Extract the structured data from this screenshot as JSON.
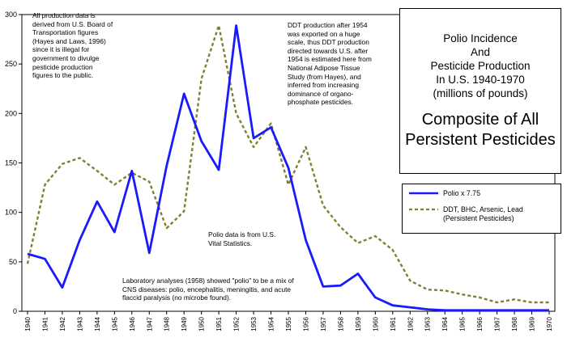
{
  "title": {
    "subtitle": "Polio Incidence\nAnd\nPesticide Production\nIn U.S. 1940-1970\n(millions of pounds)",
    "main": "Composite of All\nPersistent Pesticides"
  },
  "annotations": {
    "production_source": "All production data is\nderived from U.S. Board of\nTransportation figures\n(Hayes and Laws, 1996)\nsince it is illegal for\ngovernment to divulge\npesticide production\nfigures to the public.",
    "ddt_note": "DDT production after 1954\nwas exported on a huge\nscale, thus DDT production\ndirected towards U.S. after\n1954 is estimated here from\nNational Adipose Tissue\nStudy (from Hayes), and\ninferred from increasing\ndominance of organo-\nphosphate pesticides.",
    "polio_source": "Polio data is from U.S.\nVital Statistics.",
    "lab_note": "Laboratory analyses (1958) showed \"polio\" to be a mix of\nCNS diseases: polio, encephalitis, meningitis, and acute\nflaccid paralysis (no microbe found)."
  },
  "legend": {
    "polio": "Polio x 7.75",
    "pesticides": "DDT, BHC, Arsenic, Lead\n(Persistent Pesticides)"
  },
  "colors": {
    "polio": "#1a1aff",
    "pesticides": "#808033",
    "grid": "#000000"
  },
  "chart_data": {
    "type": "line",
    "x": [
      1940,
      1941,
      1942,
      1943,
      1944,
      1945,
      1946,
      1947,
      1948,
      1949,
      1950,
      1951,
      1952,
      1953,
      1954,
      1955,
      1956,
      1957,
      1958,
      1959,
      1960,
      1961,
      1962,
      1963,
      1964,
      1965,
      1966,
      1967,
      1968,
      1969,
      1970
    ],
    "x_tick_labels": [
      "1940",
      "1941",
      "1942",
      "1943",
      "1944",
      "1945",
      "1946",
      "1947",
      "1948",
      "1949",
      "1950",
      "1951",
      "1952",
      "1953",
      "1954",
      "1955",
      "1956",
      "1957",
      "1958",
      "1959",
      "1960",
      "1961",
      "1962",
      "1963",
      "1964",
      "1965",
      "1966",
      "1967",
      "1968",
      "1969",
      "1970"
    ],
    "y_tick_labels": [
      "0",
      "50",
      "100",
      "150",
      "200",
      "250",
      "300"
    ],
    "ylim": [
      0,
      300
    ],
    "grid": false,
    "series": [
      {
        "name": "Polio x 7.75",
        "style": "solid",
        "values": [
          58,
          53,
          24,
          72,
          111,
          80,
          142,
          59,
          147,
          220,
          172,
          143,
          289,
          175,
          186,
          145,
          72,
          25,
          26,
          38,
          14,
          6,
          4,
          2,
          1,
          1,
          1,
          1,
          1,
          1,
          1
        ]
      },
      {
        "name": "DDT, BHC, Arsenic, Lead (Persistent Pesticides)",
        "style": "dashed",
        "values": [
          48,
          128,
          149,
          155,
          142,
          128,
          140,
          131,
          84,
          101,
          235,
          289,
          200,
          166,
          190,
          128,
          166,
          107,
          85,
          69,
          76,
          62,
          31,
          22,
          21,
          17,
          14,
          9,
          12,
          9,
          9
        ]
      }
    ]
  }
}
